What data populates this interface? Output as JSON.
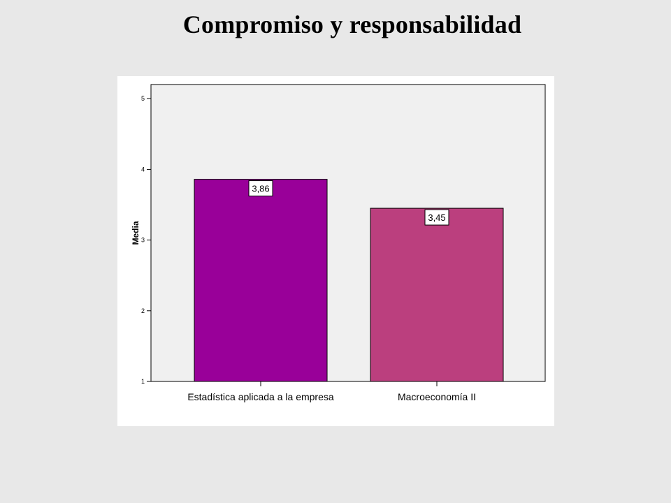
{
  "chart_data": {
    "type": "bar",
    "title": "Compromiso y responsabilidad",
    "ylabel": "Media",
    "xlabel": "",
    "categories": [
      "Estadística aplicada a la empresa",
      "Macroeconomía II"
    ],
    "values": [
      3.86,
      3.45
    ],
    "data_labels": [
      "3,86",
      "3,45"
    ],
    "ylim": [
      1,
      5.2
    ],
    "yticks": [
      1,
      2,
      3,
      4,
      5
    ],
    "ytick_labels": [
      "1",
      "2",
      "3",
      "4",
      "5"
    ],
    "grid": false,
    "bar_colors": [
      "#990099",
      "#bb3f7e"
    ],
    "plot_background": "#f0f0f0"
  }
}
